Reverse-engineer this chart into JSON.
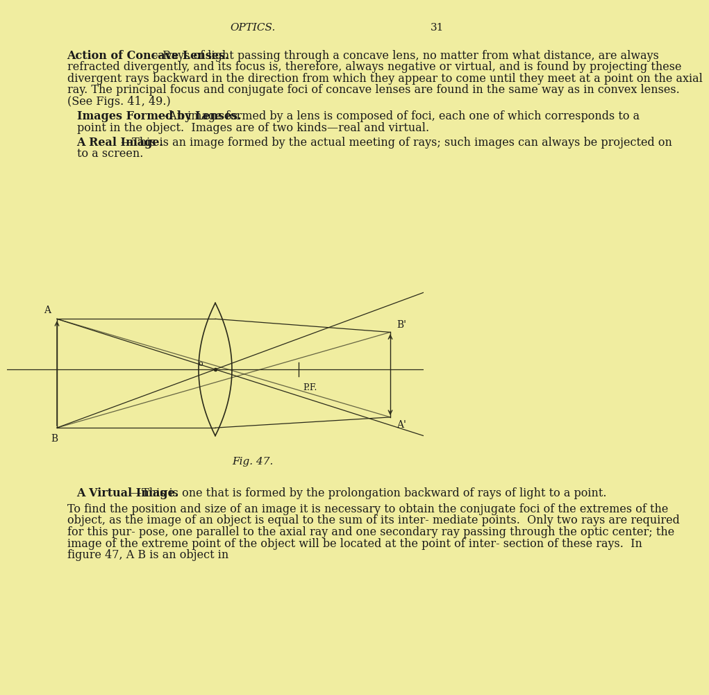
{
  "bg_color": "#f0eda0",
  "text_color": "#1a1a1a",
  "page_header": "OPTICS.",
  "page_number": "31",
  "para1_bold": "Action of Concave Lenses.",
  "para1_rest": "—Rays of light passing through a concave lens, no matter from what distance, are always refracted divergently, and its focus is, therefore, always negative or virtual, and is found by projecting these divergent rays backward in the direction from which they appear to come until they meet at a point on the axial ray. The principal focus and conjugate foci of concave lenses are found in the same way as in convex lenses.  (See Figs. 41, 49.)",
  "para2_bold": "Images Formed by Lenses.",
  "para2_rest": "—An image formed by a lens is composed of foci, each one of which corresponds to a point in the object.  Images are of two kinds—real and virtual.",
  "para3_bold": "A Real Image.",
  "para3_rest": "—This is an image formed by the actual meeting of rays; such images can always be projected on to a screen.",
  "fig_caption": "Fig. 47.",
  "para4_bold": "A Virtual Image.",
  "para4_rest": "—This is one that is formed by the prolongation backward of rays of light to a point.",
  "para5": "To find the position and size of an image it is necessary to obtain the conjugate foci of the extremes of the object, as the image of an object is equal to the sum of its inter- mediate points.  Only two rays are required for this pur- pose, one parallel to the axial ray and one secondary ray passing through the optic center; the image of the extreme point of the object will be located at the point of inter- section of these rays.  In figure 47, A B is an object in",
  "line_color": "#2a2a1a",
  "lens_color": "#2a2a1a"
}
